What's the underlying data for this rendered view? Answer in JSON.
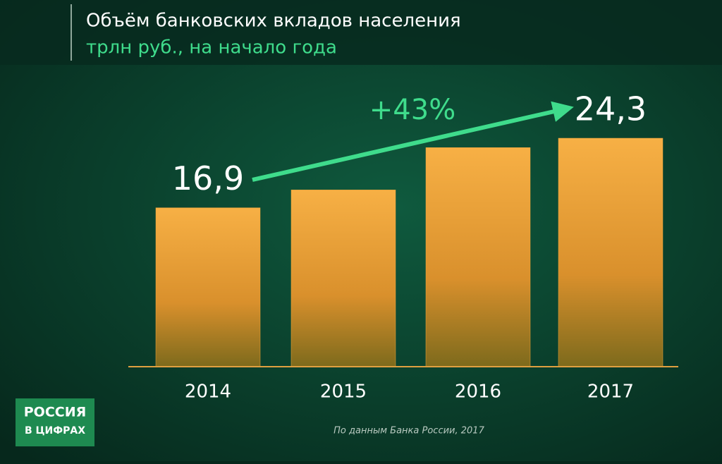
{
  "chart_data": {
    "type": "bar",
    "title": "Объём банковских вкладов населения",
    "subtitle": "трлн руб., на начало года",
    "categories": [
      "2014",
      "2015",
      "2016",
      "2017"
    ],
    "values": [
      16.9,
      18.8,
      23.3,
      24.3
    ],
    "value_labels": [
      "16,9",
      null,
      null,
      "24,3"
    ],
    "color": "#f2a43a",
    "ylim": [
      0,
      30
    ],
    "annotation": "+43%",
    "source": "По данным Банка России, 2017",
    "logo": [
      "РОССИЯ",
      "В ЦИФРАХ"
    ]
  }
}
